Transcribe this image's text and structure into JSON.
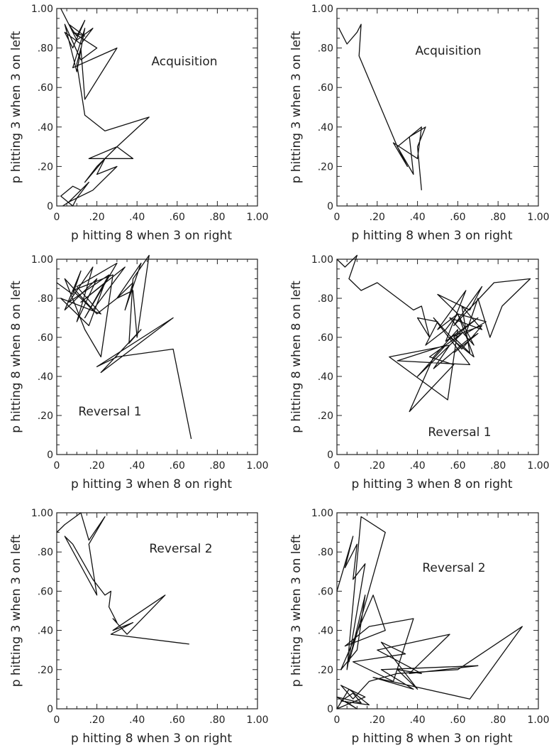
{
  "chart_data": [
    {
      "type": "line",
      "title": "Acquisition",
      "xlabel": "p hitting 8 when 3 on right",
      "ylabel": "p hitting 3 when 3 on left",
      "xlim": [
        0,
        1
      ],
      "ylim": [
        0,
        1
      ],
      "x_ticks": [
        "0",
        ".20",
        ".40",
        ".60",
        ".80",
        "1.00"
      ],
      "y_ticks": [
        "0",
        ".20",
        ".40",
        ".60",
        ".80",
        "1.00"
      ],
      "grid": false,
      "series": [
        {
          "x": [
            0.02,
            0.06,
            0.1,
            0.14,
            0.08,
            0.04,
            0.12,
            0.18,
            0.1,
            0.06,
            0.14,
            0.08,
            0.2,
            0.12,
            0.04,
            0.1,
            0.14,
            0.08,
            0.3,
            0.14,
            0.12,
            0.1,
            0.14,
            0.24,
            0.46,
            0.3,
            0.38,
            0.16,
            0.3,
            0.2,
            0.14,
            0.24,
            0.2,
            0.3,
            0.18,
            0.06,
            0.1,
            0.16,
            0.1,
            0.08,
            0.02,
            0.08,
            0.12,
            0.06,
            0.03
          ],
          "y": [
            1.0,
            0.92,
            0.86,
            0.94,
            0.8,
            0.88,
            0.82,
            0.9,
            0.84,
            0.92,
            0.86,
            0.88,
            0.8,
            0.74,
            0.92,
            0.68,
            0.9,
            0.7,
            0.8,
            0.54,
            0.8,
            0.72,
            0.46,
            0.38,
            0.45,
            0.3,
            0.24,
            0.24,
            0.3,
            0.2,
            0.12,
            0.24,
            0.16,
            0.2,
            0.08,
            0.02,
            0.06,
            0.12,
            0.04,
            0.0,
            0.05,
            0.1,
            0.08,
            0.02,
            0.0
          ]
        }
      ]
    },
    {
      "type": "line",
      "title": "Acquisition",
      "xlabel": "p hitting 8 when 3 on right",
      "ylabel": "p hitting 3 when 3 on left",
      "xlim": [
        0,
        1
      ],
      "ylim": [
        0,
        1
      ],
      "x_ticks": [
        "0",
        ".20",
        ".40",
        ".60",
        ".80",
        "1.00"
      ],
      "y_ticks": [
        "0",
        ".20",
        ".40",
        ".60",
        ".80",
        "1.00"
      ],
      "grid": false,
      "series": [
        {
          "x": [
            0.01,
            0.05,
            0.1,
            0.12,
            0.11,
            0.3,
            0.35,
            0.28,
            0.4,
            0.42,
            0.3,
            0.38,
            0.36,
            0.44,
            0.4,
            0.42
          ],
          "y": [
            0.9,
            0.82,
            0.88,
            0.92,
            0.76,
            0.3,
            0.2,
            0.32,
            0.24,
            0.4,
            0.3,
            0.16,
            0.35,
            0.4,
            0.3,
            0.08
          ]
        }
      ]
    },
    {
      "type": "line",
      "title": "Reversal 1",
      "xlabel": "p hitting 3 when 8 on right",
      "ylabel": "p hitting 8 when 8 on left",
      "xlim": [
        0,
        1
      ],
      "ylim": [
        0,
        1
      ],
      "x_ticks": [
        "0",
        ".20",
        ".40",
        ".60",
        ".80",
        "1.00"
      ],
      "y_ticks": [
        "0",
        ".20",
        ".40",
        ".60",
        ".80",
        "1.00"
      ],
      "grid": false,
      "series": [
        {
          "x": [
            0.0,
            0.08,
            0.12,
            0.04,
            0.2,
            0.1,
            0.18,
            0.06,
            0.26,
            0.14,
            0.3,
            0.1,
            0.22,
            0.02,
            0.16,
            0.24,
            0.12,
            0.34,
            0.18,
            0.08,
            0.28,
            0.22,
            0.14,
            0.04,
            0.2,
            0.3,
            0.38,
            0.34,
            0.42,
            0.3,
            0.38,
            0.4,
            0.46,
            0.38,
            0.36,
            0.42,
            0.22,
            0.58,
            0.2,
            0.3,
            0.58,
            0.67
          ],
          "y": [
            0.88,
            0.82,
            0.94,
            0.74,
            0.9,
            0.68,
            0.96,
            0.78,
            0.92,
            0.7,
            0.98,
            0.86,
            0.72,
            0.8,
            0.66,
            0.88,
            0.78,
            0.96,
            0.74,
            0.84,
            0.92,
            0.5,
            0.64,
            0.9,
            0.72,
            0.8,
            0.88,
            0.74,
            0.98,
            0.8,
            0.84,
            0.6,
            1.02,
            0.9,
            0.57,
            0.64,
            0.42,
            0.7,
            0.45,
            0.5,
            0.54,
            0.08
          ]
        }
      ]
    },
    {
      "type": "line",
      "title": "Reversal 1",
      "xlabel": "p hitting 3 when 8 on right",
      "ylabel": "p hitting 8 when 8 on left",
      "xlim": [
        0,
        1
      ],
      "ylim": [
        0,
        1
      ],
      "x_ticks": [
        "0",
        ".20",
        ".40",
        ".60",
        ".80",
        "1.00"
      ],
      "y_ticks": [
        "0",
        ".20",
        ".40",
        ".60",
        ".80",
        "1.00"
      ],
      "grid": false,
      "series": [
        {
          "x": [
            0.0,
            0.04,
            0.1,
            0.06,
            0.12,
            0.2,
            0.38,
            0.42,
            0.46,
            0.4,
            0.5,
            0.44,
            0.54,
            0.6,
            0.5,
            0.66,
            0.72,
            0.58,
            0.78,
            0.96,
            0.82,
            0.76,
            0.7,
            0.64,
            0.74,
            0.6,
            0.68,
            0.56,
            0.72,
            0.62,
            0.66,
            0.58,
            0.7,
            0.54,
            0.64,
            0.5,
            0.6,
            0.68,
            0.56,
            0.72,
            0.62,
            0.48,
            0.66,
            0.3,
            0.54,
            0.4,
            0.62,
            0.46,
            0.58,
            0.36,
            0.48,
            0.6,
            0.55,
            0.26,
            0.56,
            0.48,
            0.64,
            0.7,
            0.58
          ],
          "y": [
            1.0,
            0.96,
            1.02,
            0.9,
            0.84,
            0.88,
            0.74,
            0.76,
            0.6,
            0.7,
            0.68,
            0.56,
            0.64,
            0.72,
            0.82,
            0.74,
            0.86,
            0.66,
            0.88,
            0.9,
            0.76,
            0.6,
            0.8,
            0.62,
            0.68,
            0.72,
            0.56,
            0.7,
            0.64,
            0.76,
            0.52,
            0.6,
            0.7,
            0.58,
            0.84,
            0.64,
            0.72,
            0.5,
            0.6,
            0.66,
            0.54,
            0.7,
            0.46,
            0.48,
            0.56,
            0.4,
            0.62,
            0.5,
            0.46,
            0.22,
            0.5,
            0.64,
            0.28,
            0.5,
            0.56,
            0.44,
            0.58,
            0.62,
            0.52
          ]
        }
      ]
    },
    {
      "type": "line",
      "title": "Reversal 2",
      "xlabel": "p hitting 8 when 3 on right",
      "ylabel": "p hitting 3 when 3 on left",
      "xlim": [
        0,
        1
      ],
      "ylim": [
        0,
        1
      ],
      "x_ticks": [
        "0",
        ".20",
        ".40",
        ".60",
        ".80",
        "1.00"
      ],
      "y_ticks": [
        "0",
        ".20",
        ".40",
        ".60",
        ".80",
        "1.00"
      ],
      "grid": false,
      "series": [
        {
          "x": [
            0.0,
            0.04,
            0.12,
            0.16,
            0.24,
            0.16,
            0.2,
            0.04,
            0.08,
            0.18,
            0.24,
            0.27,
            0.26,
            0.3,
            0.28,
            0.35,
            0.54,
            0.28,
            0.38,
            0.27,
            0.66
          ],
          "y": [
            0.9,
            0.94,
            1.0,
            0.86,
            0.98,
            0.84,
            0.58,
            0.88,
            0.84,
            0.66,
            0.58,
            0.6,
            0.52,
            0.44,
            0.46,
            0.38,
            0.58,
            0.4,
            0.44,
            0.38,
            0.33
          ]
        }
      ]
    },
    {
      "type": "line",
      "title": "Reversal 2",
      "xlabel": "p hitting 8 when 3 on right",
      "ylabel": "p hitting 3 when 3 on left",
      "xlim": [
        0,
        1
      ],
      "ylim": [
        0,
        1
      ],
      "x_ticks": [
        "0",
        ".20",
        ".40",
        ".60",
        ".80",
        "1.00"
      ],
      "y_ticks": [
        "0",
        ".20",
        ".40",
        ".60",
        ".80",
        "1.00"
      ],
      "grid": false,
      "series": [
        {
          "x": [
            0.0,
            0.08,
            0.04,
            0.1,
            0.08,
            0.14,
            0.05,
            0.12,
            0.24,
            0.06,
            0.14,
            0.1,
            0.02,
            0.18,
            0.24,
            0.04,
            0.16,
            0.38,
            0.28,
            0.08,
            0.34,
            0.22,
            0.4,
            0.3,
            0.42,
            0.2,
            0.56,
            0.36,
            0.7,
            0.22,
            0.38,
            0.18,
            0.66,
            0.92,
            0.6,
            0.3,
            0.16,
            0.08,
            0.02,
            0.14,
            0.0,
            0.06,
            0.16,
            0.02,
            0.08,
            0.12,
            0.0,
            0.1,
            0.04
          ],
          "y": [
            0.6,
            0.88,
            0.72,
            0.84,
            0.66,
            0.74,
            0.2,
            0.98,
            0.9,
            0.24,
            0.58,
            0.3,
            0.2,
            0.58,
            0.4,
            0.32,
            0.42,
            0.46,
            0.14,
            0.24,
            0.28,
            0.34,
            0.1,
            0.2,
            0.18,
            0.3,
            0.38,
            0.18,
            0.22,
            0.2,
            0.1,
            0.16,
            0.05,
            0.42,
            0.2,
            0.18,
            0.14,
            0.05,
            0.12,
            0.06,
            0.0,
            0.1,
            0.02,
            0.04,
            0.08,
            0.03,
            0.06,
            0.0,
            0.04
          ]
        }
      ]
    }
  ]
}
